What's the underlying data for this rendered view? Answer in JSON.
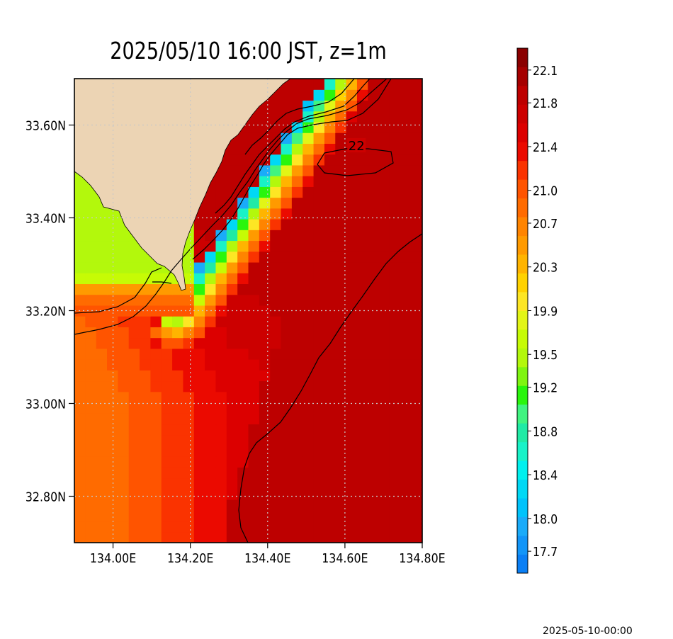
{
  "chart_data": {
    "type": "heatmap",
    "title": "2025/05/10 16:00 JST, z=1m",
    "timestamp": "2025-05-10-00:00",
    "variable_units": "",
    "x_axis": {
      "range": [
        133.9,
        134.8
      ],
      "ticks": [
        134.0,
        134.2,
        134.4,
        134.6,
        134.8
      ],
      "tick_labels": [
        "134.00E",
        "134.20E",
        "134.40E",
        "134.60E",
        "134.80E"
      ]
    },
    "y_axis": {
      "range": [
        32.7,
        33.7
      ],
      "ticks": [
        32.8,
        33.0,
        33.2,
        33.4,
        33.6
      ],
      "tick_labels": [
        "32.80N",
        "33.00N",
        "33.20N",
        "33.40N",
        "33.60N"
      ]
    },
    "grid": true,
    "land_color": "#ecd4b4",
    "colorbar": {
      "vmin": 17.5,
      "vmax": 22.3,
      "placement": "right",
      "colors": [
        "#0a7ff5",
        "#1295f8",
        "#1aabf9",
        "#00c3fb",
        "#00d8f5",
        "#00f0ee",
        "#18f2c8",
        "#20eaa5",
        "#40f480",
        "#2af50d",
        "#7ff511",
        "#b3f80c",
        "#c6fb05",
        "#e2f516",
        "#fde624",
        "#ffd200",
        "#ffb400",
        "#ff9a00",
        "#ff8400",
        "#ff6b00",
        "#ff5400",
        "#fa3300",
        "#eb0a00",
        "#dc0000",
        "#cc0000",
        "#bd0000",
        "#a50000",
        "#8a0000"
      ],
      "tick_values": [
        17.7,
        18.0,
        18.4,
        18.8,
        19.2,
        19.5,
        19.9,
        20.3,
        20.7,
        21.0,
        21.4,
        21.8,
        22.1
      ],
      "tick_labels": [
        "17.7",
        "18.0",
        "18.4",
        "18.8",
        "19.2",
        "19.5",
        "19.9",
        "20.3",
        "20.7",
        "21.0",
        "21.4",
        "21.8",
        "22.1"
      ]
    },
    "contour_labels": [
      {
        "text": "22",
        "lon": 134.63,
        "lat": 33.555
      }
    ]
  }
}
